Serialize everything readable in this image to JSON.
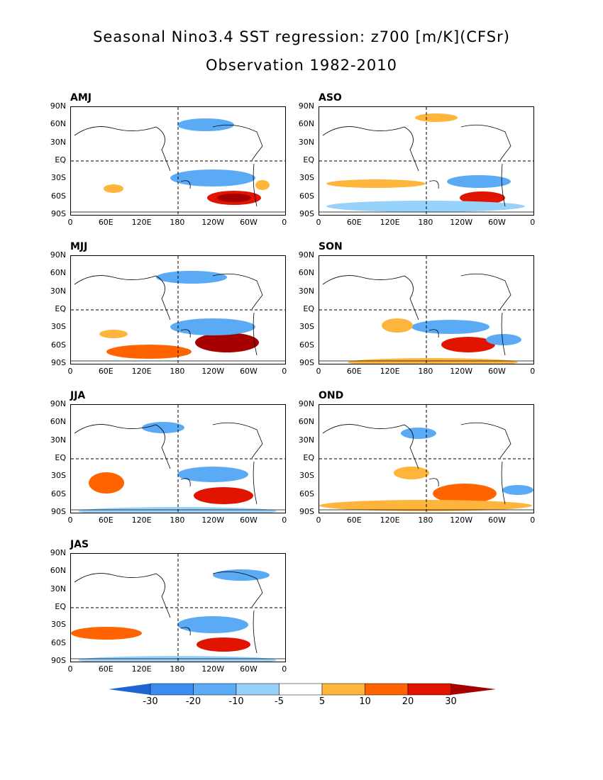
{
  "title": "Seasonal Nino3.4 SST regression: z700 [m/K](CFSr)",
  "subtitle": "Observation 1982-2010",
  "y_ticks": [
    "90N",
    "60N",
    "30N",
    "EQ",
    "30S",
    "60S",
    "90S"
  ],
  "x_ticks": [
    "0",
    "60E",
    "120E",
    "180",
    "120W",
    "60W",
    "0"
  ],
  "colorbar": {
    "levels": [
      "-30",
      "-20",
      "-10",
      "-5",
      "5",
      "10",
      "20",
      "30"
    ],
    "colors": [
      "#1e64d2",
      "#3c8cf0",
      "#5aaaf5",
      "#96d2fa",
      "#ffffff",
      "#ffb43c",
      "#ff6400",
      "#e11400",
      "#a50000"
    ]
  },
  "panels": [
    {
      "label": "AMJ"
    },
    {
      "label": "ASO"
    },
    {
      "label": "MJJ"
    },
    {
      "label": "SON"
    },
    {
      "label": "JJA"
    },
    {
      "label": "OND"
    },
    {
      "label": "JAS"
    }
  ]
}
